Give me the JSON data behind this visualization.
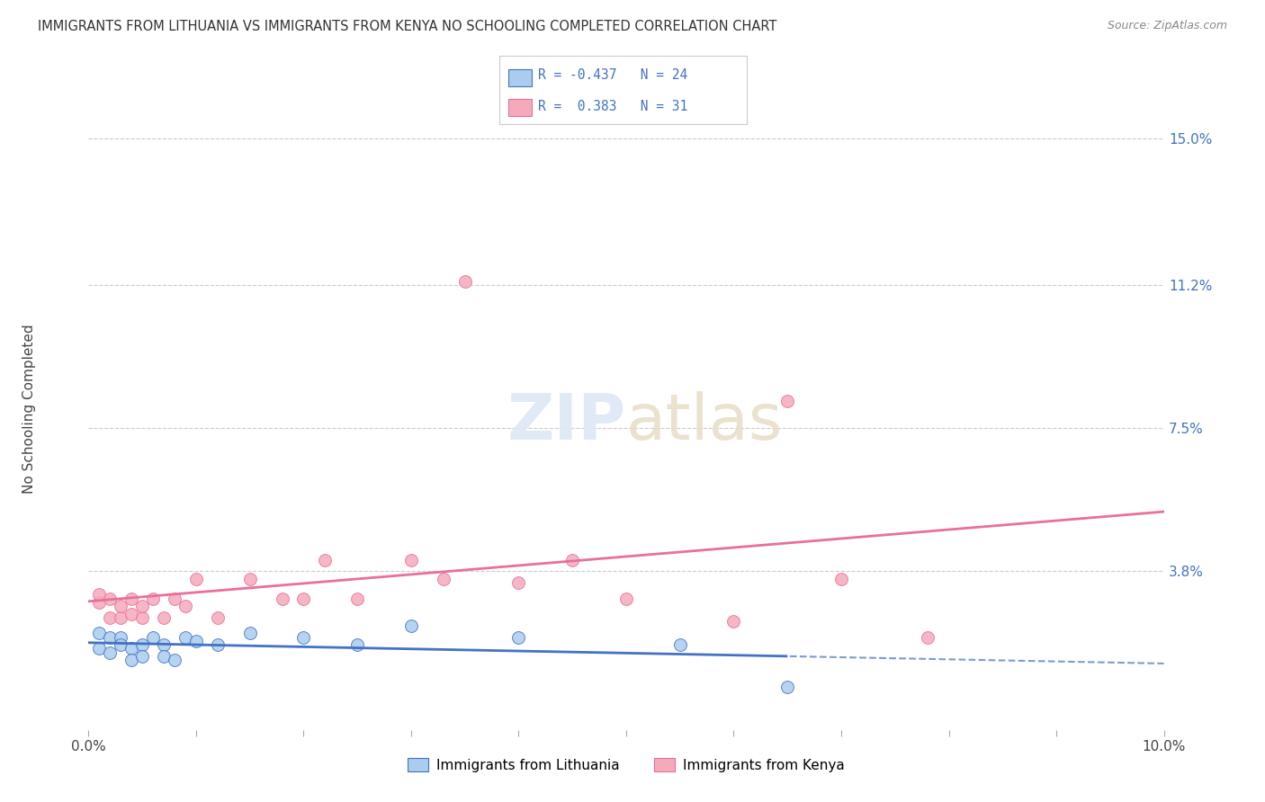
{
  "title": "IMMIGRANTS FROM LITHUANIA VS IMMIGRANTS FROM KENYA NO SCHOOLING COMPLETED CORRELATION CHART",
  "source": "Source: ZipAtlas.com",
  "ylabel": "No Schooling Completed",
  "ytick_labels": [
    "3.8%",
    "7.5%",
    "11.2%",
    "15.0%"
  ],
  "ytick_values": [
    0.038,
    0.075,
    0.112,
    0.15
  ],
  "xlim": [
    0.0,
    0.1
  ],
  "ylim": [
    -0.003,
    0.163
  ],
  "legend_label1": "Immigrants from Lithuania",
  "legend_label2": "Immigrants from Kenya",
  "background_color": "#ffffff",
  "grid_color": "#cccccc",
  "title_fontsize": 10.5,
  "source_fontsize": 9,
  "lithuania_color": "#aaccee",
  "kenya_color": "#f5aabb",
  "lithuania_line_color": "#4472c4",
  "kenya_line_color": "#e87099",
  "watermark_zip_color": "#d0dff0",
  "watermark_atlas_color": "#d0c8b0",
  "lith_x": [
    0.001,
    0.001,
    0.002,
    0.002,
    0.003,
    0.003,
    0.004,
    0.004,
    0.005,
    0.005,
    0.006,
    0.007,
    0.007,
    0.008,
    0.009,
    0.01,
    0.012,
    0.015,
    0.02,
    0.025,
    0.03,
    0.04,
    0.055,
    0.065
  ],
  "lith_y": [
    0.022,
    0.018,
    0.021,
    0.017,
    0.021,
    0.019,
    0.018,
    0.015,
    0.019,
    0.016,
    0.021,
    0.019,
    0.016,
    0.015,
    0.021,
    0.02,
    0.019,
    0.022,
    0.021,
    0.019,
    0.024,
    0.021,
    0.019,
    0.008
  ],
  "kenya_x": [
    0.001,
    0.001,
    0.002,
    0.002,
    0.003,
    0.003,
    0.004,
    0.004,
    0.005,
    0.005,
    0.006,
    0.007,
    0.008,
    0.009,
    0.01,
    0.012,
    0.015,
    0.018,
    0.02,
    0.022,
    0.025,
    0.03,
    0.033,
    0.035,
    0.04,
    0.045,
    0.05,
    0.06,
    0.065,
    0.07,
    0.078
  ],
  "kenya_y": [
    0.03,
    0.032,
    0.026,
    0.031,
    0.026,
    0.029,
    0.027,
    0.031,
    0.026,
    0.029,
    0.031,
    0.026,
    0.031,
    0.029,
    0.036,
    0.026,
    0.036,
    0.031,
    0.031,
    0.041,
    0.031,
    0.041,
    0.036,
    0.113,
    0.035,
    0.041,
    0.031,
    0.025,
    0.082,
    0.036,
    0.021
  ],
  "lith_line_solid_end": 0.065,
  "lith_line_x_start": 0.0,
  "lith_line_x_end": 0.1
}
